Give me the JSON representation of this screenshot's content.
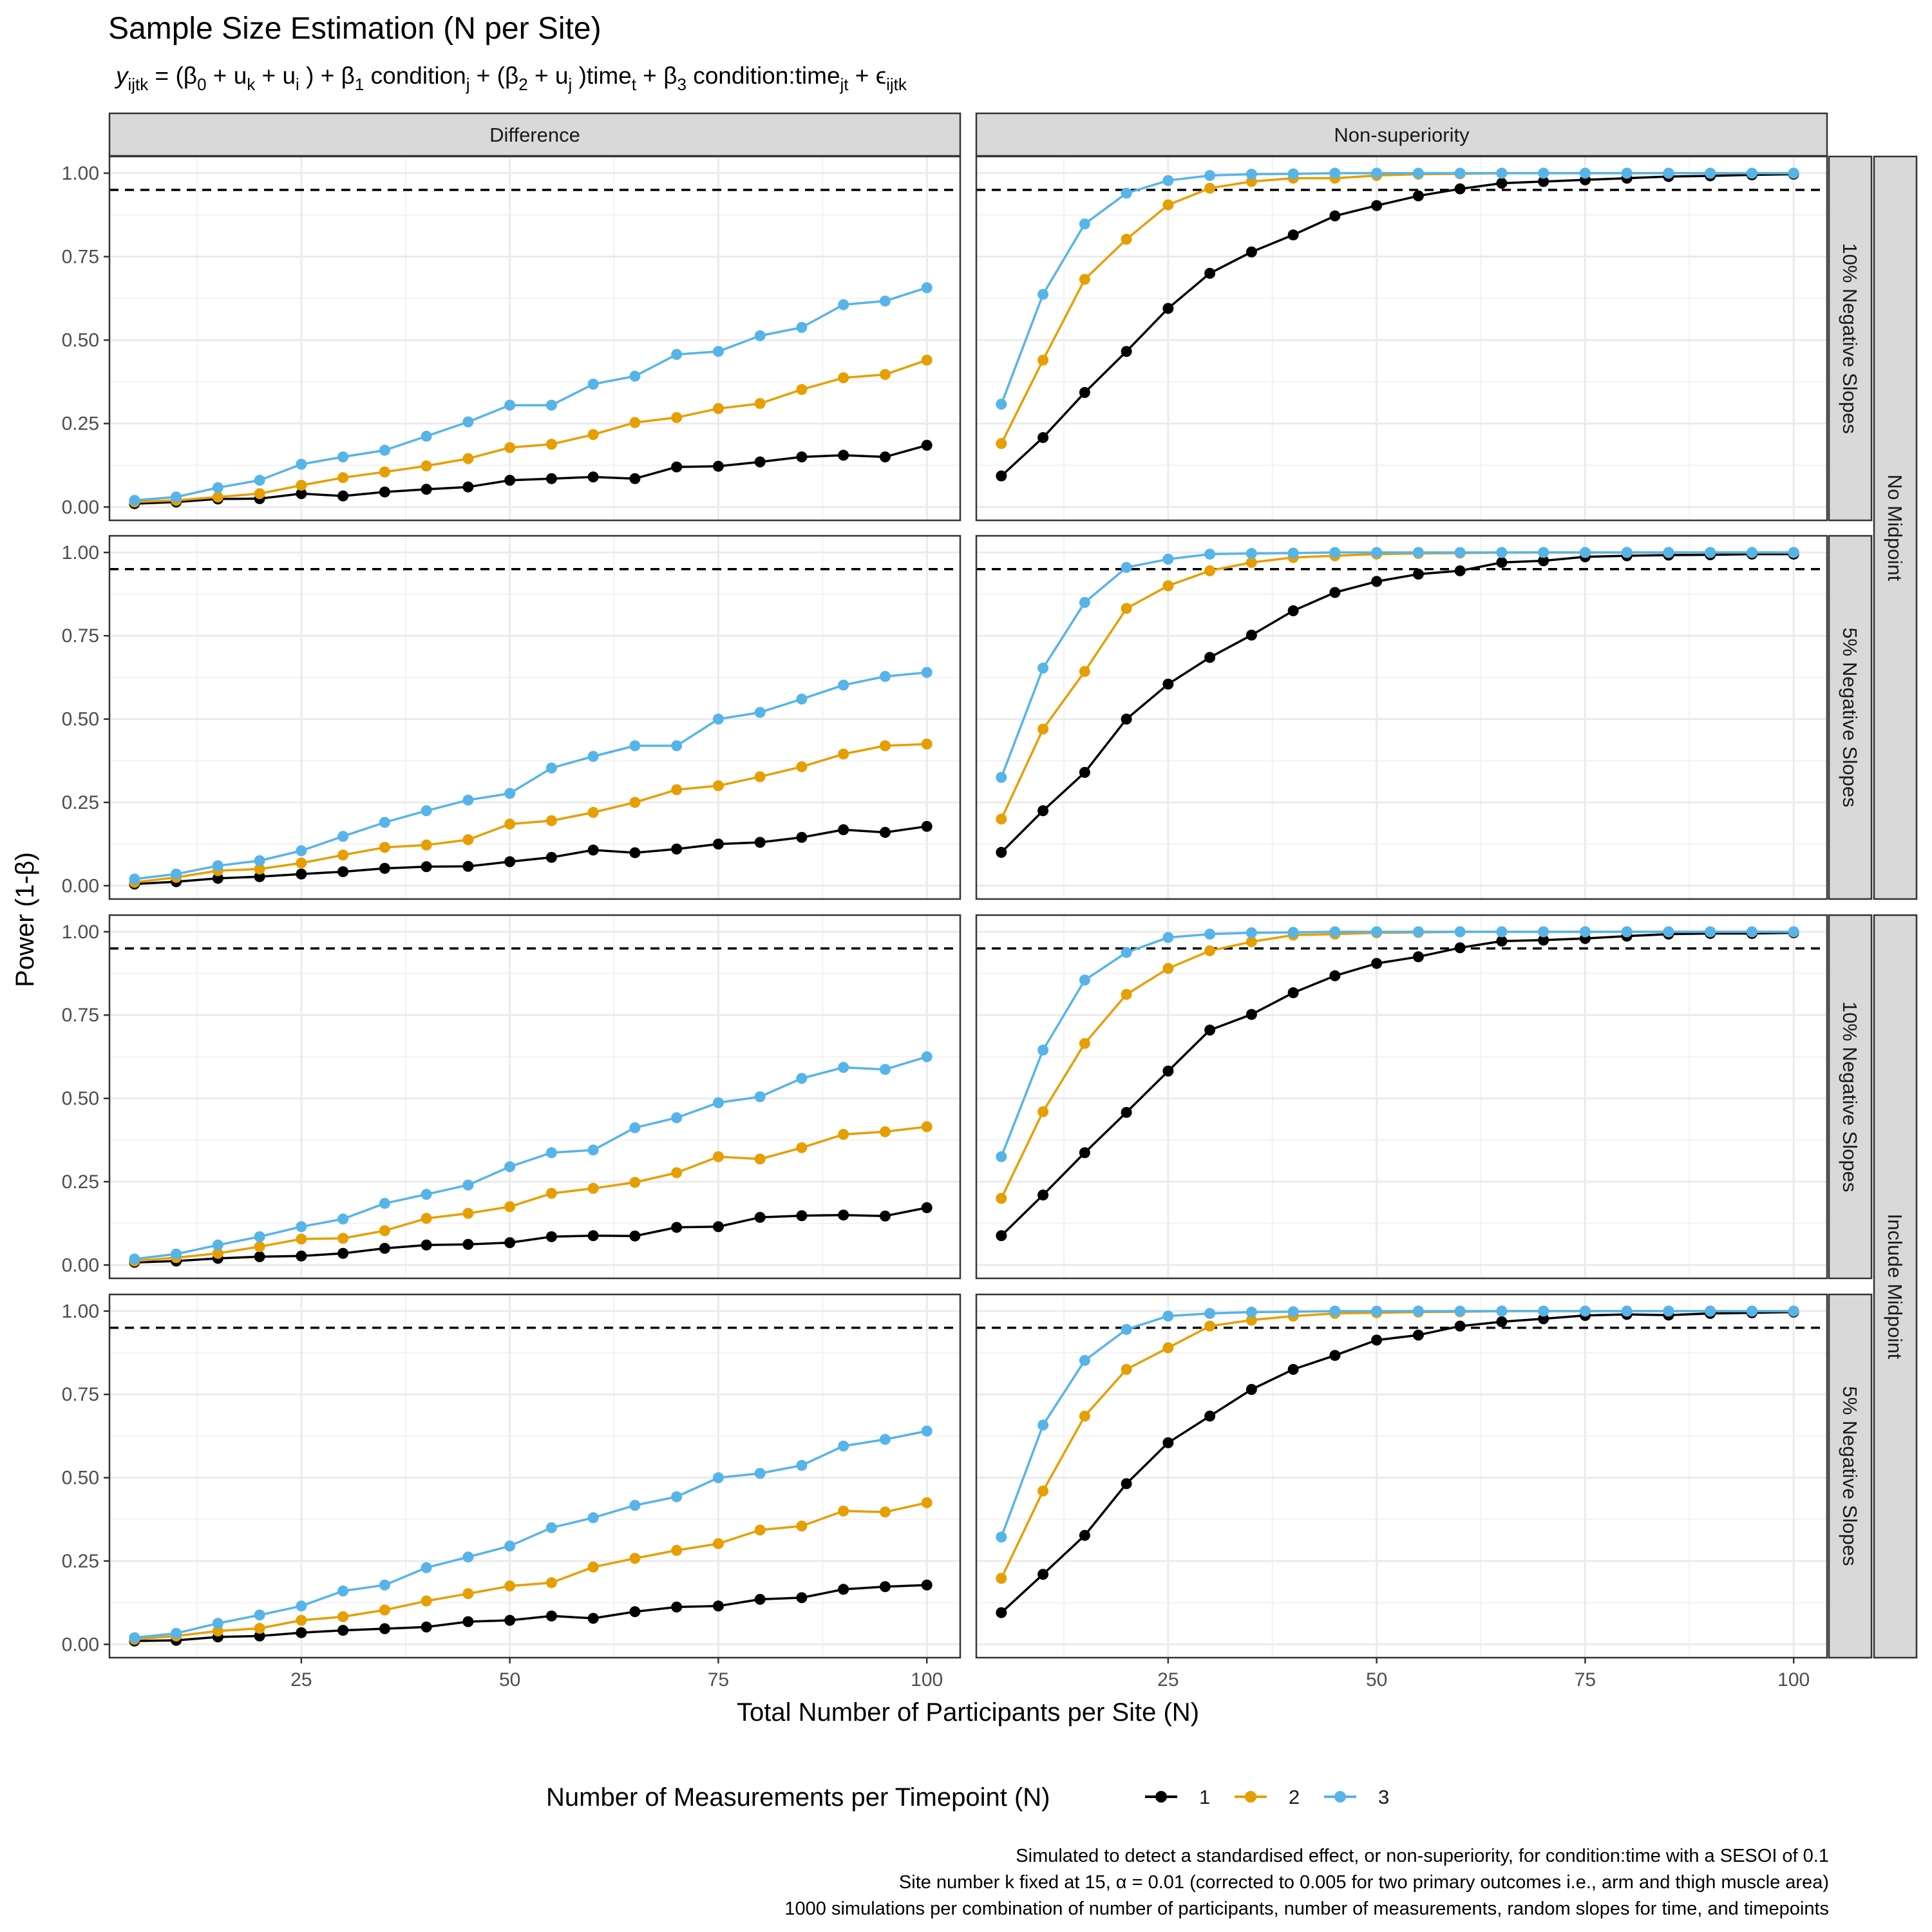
{
  "title": "Sample Size Estimation (N per Site)",
  "formula": {
    "y": "y",
    "y_sub": "ijtk",
    "eq": " = (β",
    "b0_sub": "0",
    "p1": "  +  u",
    "uk_sub": "k",
    "p2": "  +  u",
    "ui_sub": "i",
    "p3": " ) + β",
    "b1_sub": "1",
    "p4": " condition",
    "cond_sub": "j",
    "p5": "  + (β",
    "b2_sub": "2",
    "p6": "  +  u",
    "uj_sub": "j",
    "p7": " )time",
    "time_sub": "t",
    "p8": "  + β",
    "b3_sub": "3",
    "p9": " condition:time",
    "ct_sub": "jt",
    "p10": "  + ϵ",
    "eps_sub": "ijtk"
  },
  "col_strips": [
    "Difference",
    "Non-superiority"
  ],
  "row_strips": [
    "10% Negative Slopes",
    "5% Negative Slopes",
    "10% Negative Slopes",
    "5% Negative Slopes"
  ],
  "outer_strips": [
    "No Midpoint",
    "Include Midpoint"
  ],
  "colors": {
    "1": "#000000",
    "2": "#E69F00",
    "3": "#56B4E9",
    "strip_bg": "#d9d9d9",
    "grid": "#ebebeb"
  },
  "legend": {
    "title": "Number of Measurements per Timepoint (N)",
    "items": [
      "1",
      "2",
      "3"
    ]
  },
  "caption": [
    "Simulated to detect a standardised effect, or non-superiority, for condition:time with a SESOI of 0.1",
    "Site number k fixed at 15, α = 0.01 (corrected to 0.005 for two primary outcomes i.e., arm and thigh muscle area)",
    "1000 simulations per combination of number of participants, number of measurements, random slopes for time, and timepoints"
  ],
  "chart_data": {
    "type": "line",
    "xlabel": "Total Number of Participants per Site (N)",
    "ylabel": "Power (1-β)",
    "xlim": [
      2,
      104
    ],
    "ylim": [
      -0.04,
      1.05
    ],
    "x_ticks": [
      25,
      50,
      75,
      100
    ],
    "y_ticks": [
      "0.00",
      "0.25",
      "0.50",
      "0.75",
      "1.00"
    ],
    "reference_line": 0.95,
    "x": [
      5,
      10,
      15,
      20,
      25,
      30,
      35,
      40,
      45,
      50,
      55,
      60,
      65,
      70,
      75,
      80,
      85,
      90,
      95,
      100
    ],
    "panels": [
      {
        "row": 0,
        "col": 0,
        "series": [
          {
            "name": "1",
            "values": [
              0.01,
              0.015,
              0.024,
              0.025,
              0.04,
              0.033,
              0.045,
              0.053,
              0.06,
              0.08,
              0.085,
              0.09,
              0.085,
              0.12,
              0.122,
              0.135,
              0.15,
              0.155,
              0.15,
              0.185
            ]
          },
          {
            "name": "2",
            "values": [
              0.015,
              0.02,
              0.03,
              0.04,
              0.065,
              0.088,
              0.105,
              0.123,
              0.145,
              0.178,
              0.188,
              0.217,
              0.253,
              0.268,
              0.295,
              0.31,
              0.352,
              0.387,
              0.397,
              0.44
            ]
          },
          {
            "name": "3",
            "values": [
              0.02,
              0.03,
              0.058,
              0.08,
              0.128,
              0.15,
              0.17,
              0.212,
              0.255,
              0.305,
              0.305,
              0.368,
              0.392,
              0.457,
              0.466,
              0.513,
              0.538,
              0.606,
              0.617,
              0.657
            ]
          }
        ]
      },
      {
        "row": 0,
        "col": 1,
        "series": [
          {
            "name": "1",
            "values": [
              0.093,
              0.208,
              0.343,
              0.466,
              0.595,
              0.7,
              0.764,
              0.815,
              0.872,
              0.903,
              0.932,
              0.953,
              0.97,
              0.975,
              0.98,
              0.985,
              0.99,
              0.992,
              0.995,
              0.997
            ]
          },
          {
            "name": "2",
            "values": [
              0.19,
              0.44,
              0.682,
              0.802,
              0.905,
              0.955,
              0.975,
              0.985,
              0.985,
              0.993,
              0.997,
              0.998,
              1.0,
              1.0,
              1.0,
              1.0,
              1.0,
              1.0,
              1.0,
              1.0
            ]
          },
          {
            "name": "3",
            "values": [
              0.308,
              0.637,
              0.848,
              0.94,
              0.978,
              0.993,
              0.997,
              0.998,
              1.0,
              1.0,
              1.0,
              1.0,
              1.0,
              1.0,
              1.0,
              1.0,
              1.0,
              1.0,
              1.0,
              1.0
            ]
          }
        ]
      },
      {
        "row": 1,
        "col": 0,
        "series": [
          {
            "name": "1",
            "values": [
              0.005,
              0.012,
              0.022,
              0.027,
              0.035,
              0.042,
              0.052,
              0.057,
              0.058,
              0.072,
              0.085,
              0.107,
              0.099,
              0.11,
              0.125,
              0.13,
              0.145,
              0.168,
              0.16,
              0.178
            ]
          },
          {
            "name": "2",
            "values": [
              0.01,
              0.025,
              0.045,
              0.05,
              0.068,
              0.092,
              0.115,
              0.122,
              0.138,
              0.185,
              0.195,
              0.22,
              0.25,
              0.288,
              0.3,
              0.327,
              0.357,
              0.395,
              0.42,
              0.425
            ]
          },
          {
            "name": "3",
            "values": [
              0.02,
              0.035,
              0.06,
              0.075,
              0.105,
              0.148,
              0.19,
              0.225,
              0.257,
              0.277,
              0.353,
              0.388,
              0.42,
              0.42,
              0.5,
              0.52,
              0.56,
              0.602,
              0.628,
              0.64
            ]
          }
        ]
      },
      {
        "row": 1,
        "col": 1,
        "series": [
          {
            "name": "1",
            "values": [
              0.1,
              0.225,
              0.34,
              0.5,
              0.605,
              0.685,
              0.752,
              0.825,
              0.88,
              0.913,
              0.935,
              0.945,
              0.97,
              0.975,
              0.987,
              0.99,
              0.992,
              0.993,
              0.995,
              0.995
            ]
          },
          {
            "name": "2",
            "values": [
              0.2,
              0.47,
              0.643,
              0.832,
              0.9,
              0.945,
              0.97,
              0.985,
              0.99,
              0.995,
              0.997,
              0.998,
              1.0,
              1.0,
              1.0,
              1.0,
              1.0,
              1.0,
              1.0,
              1.0
            ]
          },
          {
            "name": "3",
            "values": [
              0.325,
              0.653,
              0.85,
              0.955,
              0.98,
              0.995,
              0.997,
              0.998,
              1.0,
              1.0,
              1.0,
              1.0,
              1.0,
              1.0,
              1.0,
              1.0,
              1.0,
              1.0,
              1.0,
              1.0
            ]
          }
        ]
      },
      {
        "row": 2,
        "col": 0,
        "series": [
          {
            "name": "1",
            "values": [
              0.008,
              0.012,
              0.02,
              0.025,
              0.027,
              0.035,
              0.05,
              0.06,
              0.062,
              0.067,
              0.085,
              0.088,
              0.087,
              0.113,
              0.115,
              0.143,
              0.148,
              0.15,
              0.147,
              0.172
            ]
          },
          {
            "name": "2",
            "values": [
              0.012,
              0.022,
              0.035,
              0.055,
              0.078,
              0.08,
              0.103,
              0.14,
              0.155,
              0.175,
              0.215,
              0.23,
              0.248,
              0.277,
              0.325,
              0.318,
              0.352,
              0.392,
              0.4,
              0.415
            ]
          },
          {
            "name": "3",
            "values": [
              0.018,
              0.033,
              0.06,
              0.085,
              0.115,
              0.138,
              0.185,
              0.212,
              0.24,
              0.295,
              0.337,
              0.345,
              0.412,
              0.442,
              0.487,
              0.505,
              0.56,
              0.593,
              0.587,
              0.625
            ]
          }
        ]
      },
      {
        "row": 2,
        "col": 1,
        "series": [
          {
            "name": "1",
            "values": [
              0.088,
              0.21,
              0.337,
              0.458,
              0.582,
              0.705,
              0.752,
              0.817,
              0.868,
              0.905,
              0.925,
              0.952,
              0.972,
              0.975,
              0.98,
              0.987,
              0.993,
              0.995,
              0.995,
              0.997
            ]
          },
          {
            "name": "2",
            "values": [
              0.2,
              0.46,
              0.665,
              0.812,
              0.89,
              0.943,
              0.97,
              0.99,
              0.993,
              0.997,
              0.998,
              1.0,
              1.0,
              1.0,
              1.0,
              1.0,
              1.0,
              1.0,
              1.0,
              1.0
            ]
          },
          {
            "name": "3",
            "values": [
              0.325,
              0.645,
              0.855,
              0.938,
              0.983,
              0.993,
              0.997,
              0.998,
              1.0,
              1.0,
              1.0,
              1.0,
              1.0,
              1.0,
              1.0,
              1.0,
              1.0,
              1.0,
              1.0,
              1.0
            ]
          }
        ]
      },
      {
        "row": 3,
        "col": 0,
        "series": [
          {
            "name": "1",
            "values": [
              0.01,
              0.012,
              0.022,
              0.025,
              0.035,
              0.042,
              0.047,
              0.052,
              0.068,
              0.072,
              0.085,
              0.078,
              0.098,
              0.112,
              0.115,
              0.135,
              0.14,
              0.165,
              0.173,
              0.178
            ]
          },
          {
            "name": "2",
            "values": [
              0.015,
              0.025,
              0.04,
              0.048,
              0.072,
              0.083,
              0.103,
              0.13,
              0.152,
              0.175,
              0.185,
              0.232,
              0.258,
              0.282,
              0.302,
              0.343,
              0.355,
              0.4,
              0.397,
              0.425
            ]
          },
          {
            "name": "3",
            "values": [
              0.02,
              0.033,
              0.063,
              0.088,
              0.115,
              0.16,
              0.178,
              0.23,
              0.262,
              0.295,
              0.35,
              0.38,
              0.417,
              0.443,
              0.5,
              0.513,
              0.537,
              0.595,
              0.615,
              0.64
            ]
          }
        ]
      },
      {
        "row": 3,
        "col": 1,
        "series": [
          {
            "name": "1",
            "values": [
              0.095,
              0.21,
              0.327,
              0.482,
              0.605,
              0.685,
              0.765,
              0.825,
              0.867,
              0.913,
              0.928,
              0.955,
              0.968,
              0.977,
              0.987,
              0.99,
              0.988,
              0.993,
              0.995,
              0.997
            ]
          },
          {
            "name": "2",
            "values": [
              0.198,
              0.46,
              0.685,
              0.825,
              0.89,
              0.955,
              0.973,
              0.985,
              0.993,
              0.995,
              0.997,
              0.998,
              1.0,
              1.0,
              1.0,
              1.0,
              1.0,
              1.0,
              1.0,
              1.0
            ]
          },
          {
            "name": "3",
            "values": [
              0.322,
              0.658,
              0.852,
              0.945,
              0.985,
              0.993,
              0.997,
              0.998,
              1.0,
              1.0,
              1.0,
              1.0,
              1.0,
              1.0,
              1.0,
              1.0,
              1.0,
              1.0,
              1.0,
              1.0
            ]
          }
        ]
      }
    ]
  }
}
